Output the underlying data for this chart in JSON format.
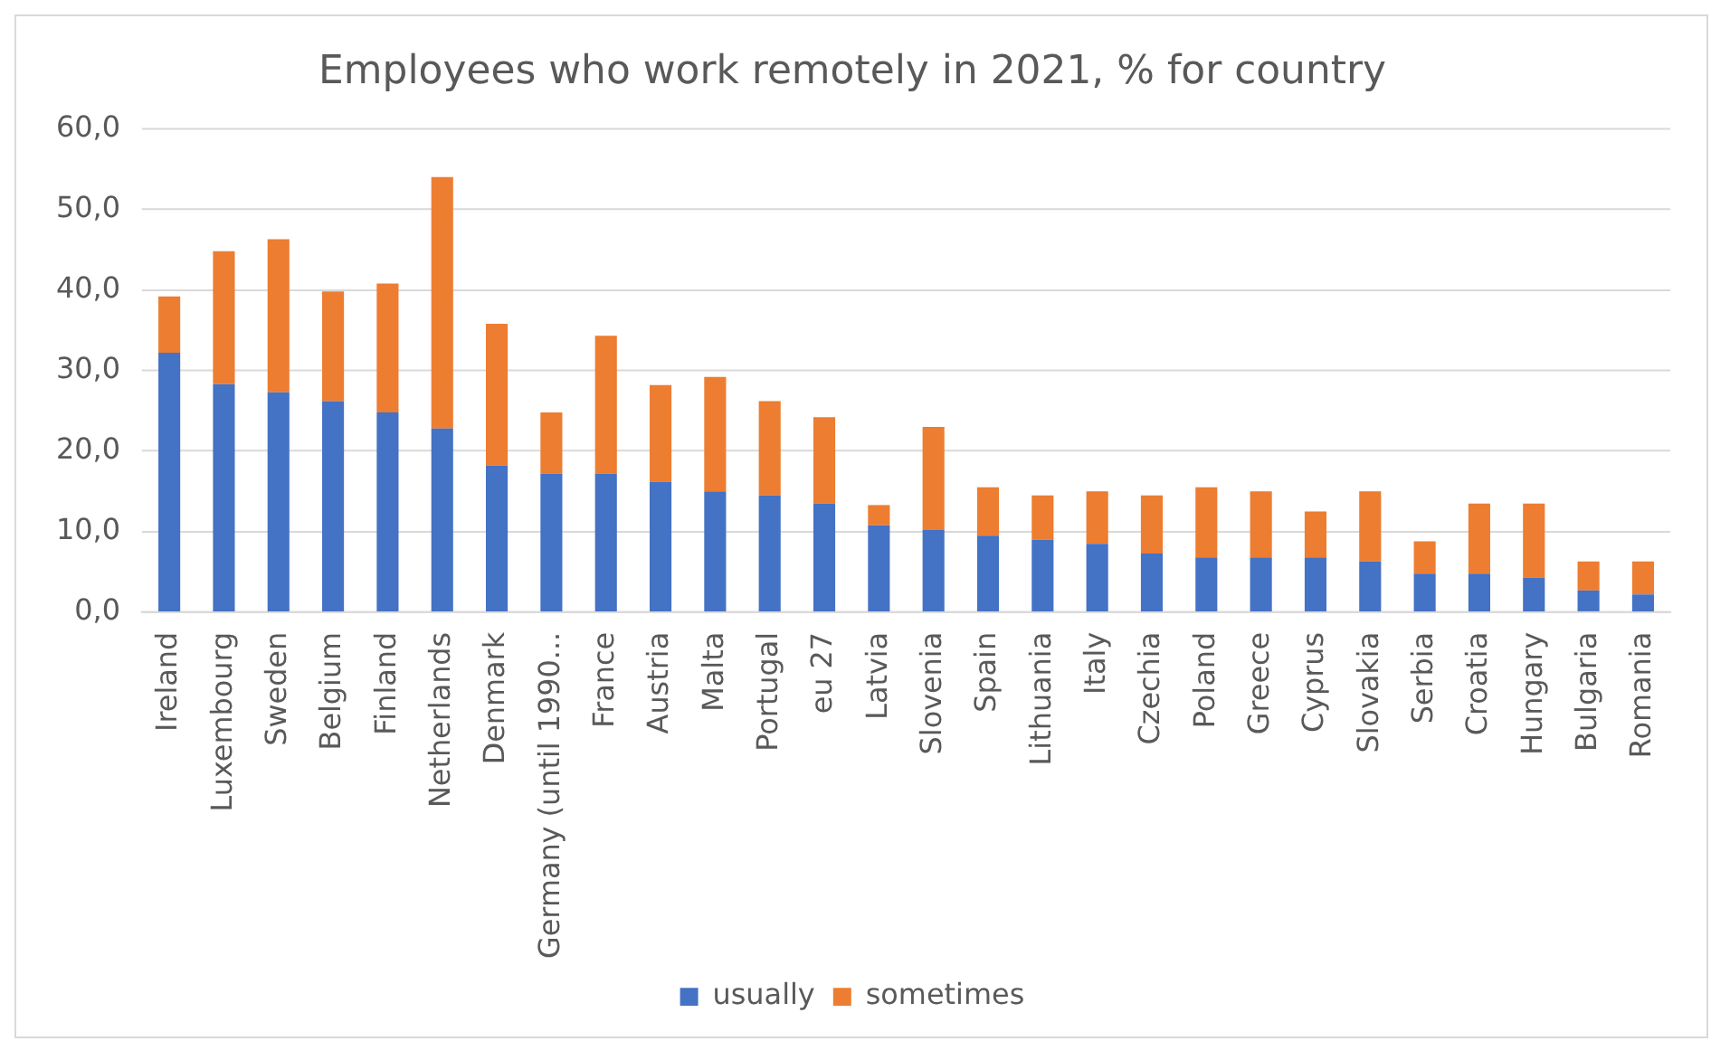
{
  "chart_data": {
    "type": "bar",
    "title": "Employees who work remotely in 2021, % for country",
    "stacked": true,
    "grid": "y",
    "legend": "bottom",
    "categories": [
      "Ireland",
      "Luxembourg",
      "Sweden",
      "Belgium",
      "Finland",
      "Netherlands",
      "Denmark",
      "Germany (until 1990...",
      "France",
      "Austria",
      "Malta",
      "Portugal",
      "eu 27",
      "Latvia",
      "Slovenia",
      "Spain",
      "Lithuania",
      "Italy",
      "Czechia",
      "Poland",
      "Greece",
      "Cyprus",
      "Slovakia",
      "Serbia",
      "Croatia",
      "Hungary",
      "Bulgaria",
      "Romania"
    ],
    "series": [
      {
        "name": "usually",
        "color": "#4472c4",
        "values": [
          32.2,
          28.3,
          27.3,
          26.2,
          24.8,
          22.8,
          18.2,
          17.2,
          17.2,
          16.2,
          15.0,
          14.5,
          13.5,
          10.8,
          10.2,
          9.5,
          9.0,
          8.5,
          7.3,
          6.8,
          6.8,
          6.8,
          6.3,
          4.8,
          4.8,
          4.3,
          2.7,
          2.2
        ]
      },
      {
        "name": "sometimes",
        "color": "#ed7d31",
        "values": [
          7.0,
          16.5,
          19.0,
          13.6,
          16.0,
          31.2,
          17.6,
          7.6,
          17.1,
          12.0,
          14.2,
          11.7,
          10.7,
          2.5,
          12.8,
          6.0,
          5.5,
          6.5,
          7.2,
          8.7,
          8.2,
          5.7,
          8.7,
          4.0,
          8.7,
          9.2,
          3.6,
          4.1
        ]
      }
    ],
    "ylim": [
      0,
      60
    ],
    "yticks": [
      {
        "value": 0,
        "label": "0,0"
      },
      {
        "value": 10,
        "label": "10,0"
      },
      {
        "value": 20,
        "label": "20,0"
      },
      {
        "value": 30,
        "label": "30,0"
      },
      {
        "value": 40,
        "label": "40,0"
      },
      {
        "value": 50,
        "label": "50,0"
      },
      {
        "value": 60,
        "label": "60,0"
      }
    ]
  }
}
